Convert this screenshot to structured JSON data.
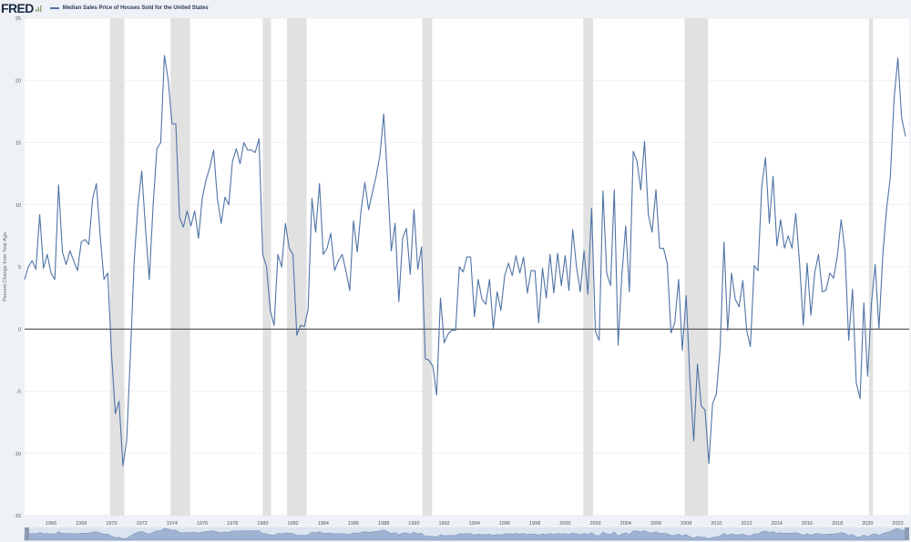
{
  "brand": {
    "logo_text": "FRED"
  },
  "legend": {
    "series_name": "Median Sales Price of Houses Sold for the United States"
  },
  "colors": {
    "line": "#4f73a6",
    "recession": "#e1e1e1",
    "zero_line": "#333333",
    "grid": "#e6e6e6",
    "navigator": "#9fb3d1"
  },
  "chart_data": {
    "type": "line",
    "title": "",
    "xlabel": "",
    "ylabel": "Percent Change from Year Ago",
    "xlim": [
      1964.25,
      2022.75
    ],
    "ylim": [
      -15,
      25
    ],
    "y_ticks": [
      -15,
      -10,
      -5,
      0,
      5,
      10,
      15,
      20,
      25
    ],
    "x_ticks": [
      1966,
      1968,
      1970,
      1972,
      1974,
      1976,
      1978,
      1980,
      1982,
      1984,
      1986,
      1988,
      1990,
      1992,
      1994,
      1996,
      1998,
      2000,
      2002,
      2004,
      2006,
      2008,
      2010,
      2012,
      2014,
      2016,
      2018,
      2020,
      2022
    ],
    "recessions": [
      [
        1969.9,
        1970.85
      ],
      [
        1973.9,
        1975.2
      ],
      [
        1980.0,
        1980.55
      ],
      [
        1981.6,
        1982.9
      ],
      [
        1990.55,
        1991.2
      ],
      [
        2001.2,
        2001.85
      ],
      [
        2007.9,
        2009.45
      ],
      [
        2020.1,
        2020.35
      ]
    ],
    "series": [
      {
        "x": [
          1964.25,
          1964.5,
          1964.75,
          1965.0,
          1965.25,
          1965.5,
          1965.75,
          1966.0,
          1966.25,
          1966.5,
          1966.75,
          1967.0,
          1967.25,
          1967.5,
          1967.75,
          1968.0,
          1968.25,
          1968.5,
          1968.75,
          1969.0,
          1969.25,
          1969.5,
          1969.75,
          1970.0,
          1970.25,
          1970.5,
          1970.75,
          1971.0,
          1971.25,
          1971.5,
          1971.75,
          1972.0,
          1972.25,
          1972.5,
          1972.75,
          1973.0,
          1973.25,
          1973.5,
          1973.75,
          1974.0,
          1974.25,
          1974.5,
          1974.75,
          1975.0,
          1975.25,
          1975.5,
          1975.75,
          1976.0,
          1976.25,
          1976.5,
          1976.75,
          1977.0,
          1977.25,
          1977.5,
          1977.75,
          1978.0,
          1978.25,
          1978.5,
          1978.75,
          1979.0,
          1979.25,
          1979.5,
          1979.75,
          1980.0,
          1980.25,
          1980.5,
          1980.75,
          1981.0,
          1981.25,
          1981.5,
          1981.75,
          1982.0,
          1982.25,
          1982.5,
          1982.75,
          1983.0,
          1983.25,
          1983.5,
          1983.75,
          1984.0,
          1984.25,
          1984.5,
          1984.75,
          1985.0,
          1985.25,
          1985.5,
          1985.75,
          1986.0,
          1986.25,
          1986.5,
          1986.75,
          1987.0,
          1987.25,
          1987.5,
          1987.75,
          1988.0,
          1988.25,
          1988.5,
          1988.75,
          1989.0,
          1989.25,
          1989.5,
          1989.75,
          1990.0,
          1990.25,
          1990.5,
          1990.75,
          1991.0,
          1991.25,
          1991.5,
          1991.75,
          1992.0,
          1992.25,
          1992.5,
          1992.75,
          1993.0,
          1993.25,
          1993.5,
          1993.75,
          1994.0,
          1994.25,
          1994.5,
          1994.75,
          1995.0,
          1995.25,
          1995.5,
          1995.75,
          1996.0,
          1996.25,
          1996.5,
          1996.75,
          1997.0,
          1997.25,
          1997.5,
          1997.75,
          1998.0,
          1998.25,
          1998.5,
          1998.75,
          1999.0,
          1999.25,
          1999.5,
          1999.75,
          2000.0,
          2000.25,
          2000.5,
          2000.75,
          2001.0,
          2001.25,
          2001.5,
          2001.75,
          2002.0,
          2002.25,
          2002.5,
          2002.75,
          2003.0,
          2003.25,
          2003.5,
          2003.75,
          2004.0,
          2004.25,
          2004.5,
          2004.75,
          2005.0,
          2005.25,
          2005.5,
          2005.75,
          2006.0,
          2006.25,
          2006.5,
          2006.75,
          2007.0,
          2007.25,
          2007.5,
          2007.75,
          2008.0,
          2008.25,
          2008.5,
          2008.75,
          2009.0,
          2009.25,
          2009.5,
          2009.75,
          2010.0,
          2010.25,
          2010.5,
          2010.75,
          2011.0,
          2011.25,
          2011.5,
          2011.75,
          2012.0,
          2012.25,
          2012.5,
          2012.75,
          2013.0,
          2013.25,
          2013.5,
          2013.75,
          2014.0,
          2014.25,
          2014.5,
          2014.75,
          2015.0,
          2015.25,
          2015.5,
          2015.75,
          2016.0,
          2016.25,
          2016.5,
          2016.75,
          2017.0,
          2017.25,
          2017.5,
          2017.75,
          2018.0,
          2018.25,
          2018.5,
          2018.75,
          2019.0,
          2019.25,
          2019.5,
          2019.75,
          2020.0,
          2020.25,
          2020.5,
          2020.75,
          2021.0,
          2021.25,
          2021.5,
          2021.75,
          2022.0,
          2022.25,
          2022.5
        ],
        "values": [
          4.0,
          5.0,
          5.5,
          4.8,
          9.2,
          4.9,
          6.0,
          4.5,
          4.0,
          11.6,
          6.2,
          5.2,
          6.3,
          5.5,
          4.7,
          7.0,
          7.2,
          6.8,
          10.5,
          11.7,
          7.5,
          4.0,
          4.5,
          -2.0,
          -6.8,
          -5.8,
          -11.0,
          -9.0,
          -2.0,
          5.5,
          10.0,
          12.7,
          8.0,
          4.0,
          10.0,
          14.5,
          15.0,
          22.0,
          20.0,
          16.5,
          16.5,
          9.0,
          8.2,
          9.5,
          8.3,
          9.5,
          7.3,
          10.5,
          12.0,
          13.0,
          14.4,
          10.5,
          8.5,
          10.6,
          10.0,
          13.5,
          14.5,
          13.3,
          15.0,
          14.4,
          14.4,
          14.2,
          15.3,
          6.0,
          5.0,
          1.5,
          0.3,
          6.0,
          5.0,
          8.5,
          6.5,
          6.0,
          -0.5,
          0.3,
          0.2,
          1.6,
          10.5,
          7.8,
          11.7,
          6.0,
          6.5,
          7.7,
          4.7,
          5.5,
          6.0,
          4.7,
          3.1,
          8.7,
          6.2,
          9.5,
          11.8,
          9.6,
          11.0,
          12.3,
          14.0,
          17.3,
          12.0,
          6.3,
          8.5,
          2.2,
          7.3,
          8.1,
          4.4,
          9.6,
          4.8,
          6.6,
          -2.4,
          -2.5,
          -3.0,
          -5.3,
          2.5,
          -1.1,
          -0.4,
          -0.1,
          -0.1,
          5.0,
          4.6,
          5.8,
          5.8,
          1.0,
          4.0,
          2.4,
          2.0,
          4.0,
          0.0,
          3.0,
          1.5,
          4.3,
          5.3,
          4.3,
          5.9,
          4.5,
          5.8,
          2.9,
          4.7,
          4.7,
          0.5,
          4.9,
          2.5,
          6.0,
          2.9,
          6.1,
          3.5,
          5.9,
          3.1,
          8.0,
          5.0,
          3.0,
          6.3,
          2.8,
          9.7,
          -0.2,
          -0.9,
          11.1,
          4.5,
          3.5,
          11.2,
          -1.3,
          4.3,
          8.3,
          3.0,
          14.3,
          13.5,
          11.2,
          15.1,
          9.2,
          7.8,
          11.2,
          6.5,
          6.5,
          5.3,
          -0.3,
          0.5,
          4.0,
          -1.7,
          2.7,
          -4.0,
          -9.0,
          -2.8,
          -6.2,
          -6.5,
          -10.8,
          -6.0,
          -5.2,
          -1.5,
          7.0,
          -0.1,
          4.5,
          2.4,
          1.8,
          3.9,
          -0.1,
          -1.4,
          5.1,
          4.7,
          11.5,
          13.8,
          8.5,
          12.3,
          6.7,
          8.8,
          6.5,
          7.5,
          6.5,
          9.3,
          5.3,
          0.3,
          5.3,
          1.1,
          4.5,
          6.0,
          3.0,
          3.1,
          4.5,
          4.1,
          5.9,
          8.8,
          6.3,
          -0.9,
          3.2,
          -4.3,
          -5.6,
          2.1,
          -3.8,
          2.0,
          5.2,
          0.0,
          5.9,
          9.6,
          12.2,
          18.5,
          21.8,
          17.0,
          15.5
        ]
      }
    ]
  }
}
